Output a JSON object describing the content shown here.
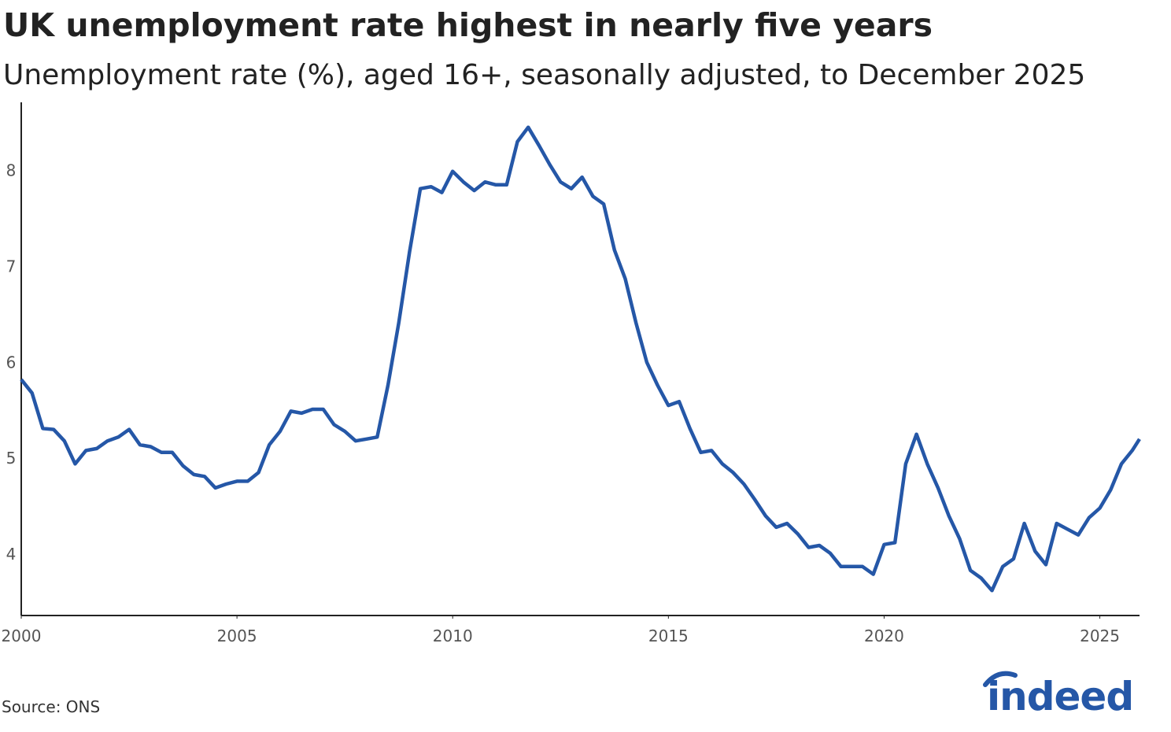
{
  "chart_data": {
    "type": "line",
    "title": "UK unemployment rate highest in nearly five years",
    "subtitle": "Unemployment rate (%), aged 16+, seasonally adjusted, to December 2025",
    "source": "Source: ONS",
    "logo": "indeed",
    "x": [
      2000,
      2000.25,
      2000.5,
      2000.75,
      2001,
      2001.25,
      2001.5,
      2001.75,
      2002,
      2002.25,
      2002.5,
      2002.75,
      2003,
      2003.25,
      2003.5,
      2003.75,
      2004,
      2004.25,
      2004.5,
      2004.75,
      2005,
      2005.25,
      2005.5,
      2005.75,
      2006,
      2006.25,
      2006.5,
      2006.75,
      2007,
      2007.25,
      2007.5,
      2007.75,
      2008,
      2008.25,
      2008.5,
      2008.75,
      2009,
      2009.25,
      2009.5,
      2009.75,
      2010,
      2010.25,
      2010.5,
      2010.75,
      2011,
      2011.25,
      2011.5,
      2011.75,
      2012,
      2012.25,
      2012.5,
      2012.75,
      2013,
      2013.25,
      2013.5,
      2013.75,
      2014,
      2014.25,
      2014.5,
      2014.75,
      2015,
      2015.25,
      2015.5,
      2015.75,
      2016,
      2016.25,
      2016.5,
      2016.75,
      2017,
      2017.25,
      2017.5,
      2017.75,
      2018,
      2018.25,
      2018.5,
      2018.75,
      2019,
      2019.25,
      2019.5,
      2019.75,
      2020,
      2020.25,
      2020.5,
      2020.75,
      2021,
      2021.25,
      2021.5,
      2021.75,
      2022,
      2022.25,
      2022.5,
      2022.75,
      2023,
      2023.25,
      2023.5,
      2023.75,
      2024,
      2024.25,
      2024.5,
      2024.75,
      2025,
      2025.25,
      2025.5,
      2025.75,
      2025.92
    ],
    "series": [
      {
        "color": "#2557a7",
        "values": [
          5.82,
          5.68,
          5.31,
          5.3,
          5.18,
          4.94,
          5.08,
          5.1,
          5.18,
          5.22,
          5.3,
          5.14,
          5.12,
          5.06,
          5.06,
          4.92,
          4.83,
          4.81,
          4.69,
          4.73,
          4.76,
          4.76,
          4.85,
          5.14,
          5.28,
          5.49,
          5.47,
          5.51,
          5.51,
          5.35,
          5.28,
          5.18,
          5.2,
          5.22,
          5.76,
          6.41,
          7.15,
          7.81,
          7.83,
          7.77,
          7.99,
          7.88,
          7.79,
          7.88,
          7.85,
          7.85,
          8.3,
          8.45,
          8.26,
          8.06,
          7.88,
          7.81,
          7.93,
          7.73,
          7.65,
          7.17,
          6.87,
          6.41,
          6.0,
          5.76,
          5.55,
          5.59,
          5.31,
          5.06,
          5.08,
          4.94,
          4.85,
          4.73,
          4.57,
          4.4,
          4.28,
          4.32,
          4.21,
          4.07,
          4.09,
          4.01,
          3.87,
          3.87,
          3.87,
          3.79,
          4.1,
          4.12,
          4.94,
          5.25,
          4.94,
          4.69,
          4.4,
          4.16,
          3.83,
          3.75,
          3.62,
          3.87,
          3.95,
          4.32,
          4.03,
          3.89,
          4.32,
          4.26,
          4.2,
          4.38,
          4.48,
          4.67,
          4.94,
          5.08,
          5.2
        ]
      }
    ],
    "xlim": [
      2000,
      2025.92
    ],
    "xticks": [
      2000,
      2005,
      2010,
      2015,
      2020,
      2025
    ],
    "ylim": [
      3.36,
      8.71
    ],
    "yticks": [
      4,
      5,
      6,
      7,
      8
    ],
    "grid": false
  }
}
